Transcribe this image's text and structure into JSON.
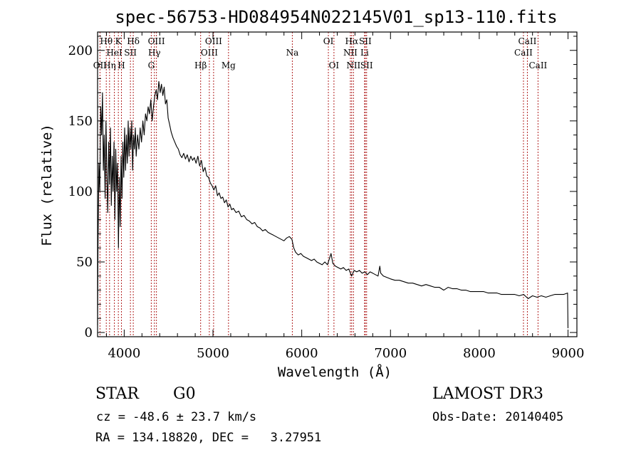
{
  "colors": {
    "spectrum": "#000000",
    "line_marker": "#b22222",
    "axis": "#000000",
    "background": "#ffffff"
  },
  "info": {
    "class": "STAR",
    "subclass": "G0",
    "survey": "LAMOST DR3",
    "cz": "cz = -48.6 ± 23.7 km/s",
    "obs_date": "Obs-Date: 20140405",
    "radec": "RA = 134.18820, DEC =   3.27951"
  },
  "chart_data": {
    "type": "line",
    "title": "spec-56753-HD084954N022145V01_sp13-110.fits",
    "xlabel": "Wavelength (Å)",
    "ylabel": "Flux (relative)",
    "xlim": [
      3700,
      9100
    ],
    "ylim": [
      -3,
      213
    ],
    "xticks": [
      4000,
      5000,
      6000,
      7000,
      8000,
      9000
    ],
    "xtick_labels": [
      "4000",
      "5000",
      "6000",
      "7000",
      "8000",
      "9000"
    ],
    "yticks": [
      0,
      50,
      100,
      150,
      200
    ],
    "ytick_labels": [
      "0",
      "50",
      "100",
      "150",
      "200"
    ],
    "grid": false,
    "series": [
      {
        "name": "flux",
        "points": [
          [
            3700,
            5
          ],
          [
            3705,
            60
          ],
          [
            3715,
            120
          ],
          [
            3725,
            100
          ],
          [
            3735,
            160
          ],
          [
            3745,
            140
          ],
          [
            3755,
            170
          ],
          [
            3765,
            115
          ],
          [
            3775,
            140
          ],
          [
            3785,
            95
          ],
          [
            3795,
            150
          ],
          [
            3805,
            110
          ],
          [
            3815,
            85
          ],
          [
            3825,
            135
          ],
          [
            3835,
            105
          ],
          [
            3845,
            145
          ],
          [
            3855,
            90
          ],
          [
            3865,
            125
          ],
          [
            3875,
            100
          ],
          [
            3885,
            135
          ],
          [
            3895,
            80
          ],
          [
            3905,
            130
          ],
          [
            3915,
            100
          ],
          [
            3925,
            120
          ],
          [
            3935,
            60
          ],
          [
            3945,
            110
          ],
          [
            3955,
            75
          ],
          [
            3965,
            125
          ],
          [
            3975,
            95
          ],
          [
            3985,
            135
          ],
          [
            3995,
            110
          ],
          [
            4005,
            145
          ],
          [
            4015,
            115
          ],
          [
            4025,
            140
          ],
          [
            4035,
            120
          ],
          [
            4045,
            150
          ],
          [
            4055,
            125
          ],
          [
            4065,
            145
          ],
          [
            4075,
            130
          ],
          [
            4085,
            150
          ],
          [
            4095,
            115
          ],
          [
            4105,
            140
          ],
          [
            4115,
            130
          ],
          [
            4125,
            145
          ],
          [
            4135,
            125
          ],
          [
            4150,
            140
          ],
          [
            4165,
            130
          ],
          [
            4180,
            145
          ],
          [
            4195,
            135
          ],
          [
            4210,
            150
          ],
          [
            4225,
            140
          ],
          [
            4240,
            155
          ],
          [
            4255,
            150
          ],
          [
            4270,
            160
          ],
          [
            4285,
            155
          ],
          [
            4300,
            165
          ],
          [
            4315,
            150
          ],
          [
            4330,
            160
          ],
          [
            4345,
            168
          ],
          [
            4360,
            172
          ],
          [
            4375,
            165
          ],
          [
            4390,
            178
          ],
          [
            4405,
            170
          ],
          [
            4420,
            176
          ],
          [
            4435,
            168
          ],
          [
            4450,
            174
          ],
          [
            4465,
            162
          ],
          [
            4480,
            165
          ],
          [
            4495,
            152
          ],
          [
            4510,
            148
          ],
          [
            4530,
            142
          ],
          [
            4550,
            138
          ],
          [
            4570,
            135
          ],
          [
            4590,
            132
          ],
          [
            4610,
            130
          ],
          [
            4630,
            126
          ],
          [
            4650,
            124
          ],
          [
            4670,
            127
          ],
          [
            4690,
            123
          ],
          [
            4710,
            126
          ],
          [
            4730,
            121
          ],
          [
            4750,
            125
          ],
          [
            4770,
            122
          ],
          [
            4790,
            124
          ],
          [
            4810,
            120
          ],
          [
            4830,
            125
          ],
          [
            4850,
            118
          ],
          [
            4870,
            122
          ],
          [
            4890,
            114
          ],
          [
            4910,
            117
          ],
          [
            4930,
            111
          ],
          [
            4950,
            110
          ],
          [
            4970,
            106
          ],
          [
            4990,
            104
          ],
          [
            5010,
            101
          ],
          [
            5030,
            104
          ],
          [
            5050,
            97
          ],
          [
            5070,
            99
          ],
          [
            5090,
            95
          ],
          [
            5110,
            96
          ],
          [
            5130,
            92
          ],
          [
            5150,
            94
          ],
          [
            5170,
            89
          ],
          [
            5190,
            91
          ],
          [
            5210,
            87
          ],
          [
            5230,
            88
          ],
          [
            5260,
            85
          ],
          [
            5290,
            86
          ],
          [
            5320,
            82
          ],
          [
            5350,
            83
          ],
          [
            5380,
            80
          ],
          [
            5410,
            79
          ],
          [
            5440,
            77
          ],
          [
            5470,
            78
          ],
          [
            5500,
            75
          ],
          [
            5530,
            74
          ],
          [
            5560,
            72
          ],
          [
            5590,
            73
          ],
          [
            5620,
            71
          ],
          [
            5650,
            70
          ],
          [
            5680,
            69
          ],
          [
            5710,
            68
          ],
          [
            5740,
            67
          ],
          [
            5770,
            66
          ],
          [
            5800,
            65
          ],
          [
            5830,
            67
          ],
          [
            5860,
            68
          ],
          [
            5890,
            66
          ],
          [
            5910,
            60
          ],
          [
            5930,
            57
          ],
          [
            5960,
            55
          ],
          [
            5990,
            56
          ],
          [
            6020,
            54
          ],
          [
            6050,
            53
          ],
          [
            6080,
            52
          ],
          [
            6110,
            51
          ],
          [
            6140,
            52
          ],
          [
            6170,
            50
          ],
          [
            6200,
            49
          ],
          [
            6230,
            48
          ],
          [
            6260,
            50
          ],
          [
            6290,
            48
          ],
          [
            6310,
            52
          ],
          [
            6330,
            56
          ],
          [
            6350,
            49
          ],
          [
            6380,
            47
          ],
          [
            6410,
            46
          ],
          [
            6440,
            45
          ],
          [
            6470,
            46
          ],
          [
            6500,
            44
          ],
          [
            6530,
            45
          ],
          [
            6562,
            40
          ],
          [
            6590,
            44
          ],
          [
            6620,
            43
          ],
          [
            6650,
            44
          ],
          [
            6680,
            42
          ],
          [
            6710,
            43
          ],
          [
            6740,
            41
          ],
          [
            6770,
            43
          ],
          [
            6800,
            42
          ],
          [
            6830,
            41
          ],
          [
            6860,
            40
          ],
          [
            6880,
            47
          ],
          [
            6890,
            42
          ],
          [
            6920,
            40
          ],
          [
            6960,
            39
          ],
          [
            7000,
            38
          ],
          [
            7050,
            37
          ],
          [
            7100,
            37
          ],
          [
            7150,
            36
          ],
          [
            7200,
            35
          ],
          [
            7250,
            35
          ],
          [
            7300,
            34
          ],
          [
            7350,
            33
          ],
          [
            7400,
            34
          ],
          [
            7450,
            33
          ],
          [
            7500,
            32
          ],
          [
            7550,
            32
          ],
          [
            7600,
            30
          ],
          [
            7650,
            32
          ],
          [
            7700,
            31
          ],
          [
            7750,
            31
          ],
          [
            7800,
            30
          ],
          [
            7850,
            30
          ],
          [
            7900,
            29
          ],
          [
            7950,
            29
          ],
          [
            8000,
            29
          ],
          [
            8050,
            29
          ],
          [
            8100,
            28
          ],
          [
            8150,
            28
          ],
          [
            8200,
            28
          ],
          [
            8250,
            27
          ],
          [
            8300,
            27
          ],
          [
            8350,
            27
          ],
          [
            8400,
            27
          ],
          [
            8450,
            26
          ],
          [
            8500,
            27
          ],
          [
            8550,
            24
          ],
          [
            8600,
            26
          ],
          [
            8650,
            25
          ],
          [
            8700,
            26
          ],
          [
            8750,
            25
          ],
          [
            8800,
            26
          ],
          [
            8850,
            27
          ],
          [
            8900,
            27
          ],
          [
            8950,
            27
          ],
          [
            8995,
            28
          ],
          [
            9000,
            3
          ]
        ]
      }
    ],
    "line_markers": [
      {
        "label": "Hθ",
        "x": 3798,
        "row": 1
      },
      {
        "label": "OII",
        "x": 3727,
        "row": 3
      },
      {
        "label": "Hη",
        "x": 3835,
        "row": 3
      },
      {
        "label": "HeI",
        "x": 3889,
        "row": 2
      },
      {
        "label": "K",
        "x": 3934,
        "row": 1
      },
      {
        "label": "H",
        "x": 3969,
        "row": 3
      },
      {
        "label": "SII",
        "x": 4070,
        "row": 2
      },
      {
        "label": "Hδ",
        "x": 4102,
        "row": 1
      },
      {
        "label": "OIII",
        "x": 4363,
        "row": 1
      },
      {
        "label": "Hγ",
        "x": 4340,
        "row": 2
      },
      {
        "label": "G",
        "x": 4305,
        "row": 3
      },
      {
        "label": "Hβ",
        "x": 4861,
        "row": 3
      },
      {
        "label": "OIII",
        "x": 5007,
        "row": 1
      },
      {
        "label": "OIII",
        "x": 4959,
        "row": 2
      },
      {
        "label": "Mg",
        "x": 5175,
        "row": 3
      },
      {
        "label": "Na",
        "x": 5894,
        "row": 2
      },
      {
        "label": "OI",
        "x": 6300,
        "row": 1
      },
      {
        "label": "OI",
        "x": 6363,
        "row": 3
      },
      {
        "label": "Hα",
        "x": 6563,
        "row": 1
      },
      {
        "label": "NII",
        "x": 6548,
        "row": 2
      },
      {
        "label": "NII",
        "x": 6583,
        "row": 3
      },
      {
        "label": "SII",
        "x": 6716,
        "row": 1
      },
      {
        "label": "Li",
        "x": 6708,
        "row": 2
      },
      {
        "label": "SII",
        "x": 6731,
        "row": 3
      },
      {
        "label": "CaII",
        "x": 8542,
        "row": 1
      },
      {
        "label": "CaII",
        "x": 8498,
        "row": 2
      },
      {
        "label": "CaII",
        "x": 8662,
        "row": 3
      }
    ]
  }
}
